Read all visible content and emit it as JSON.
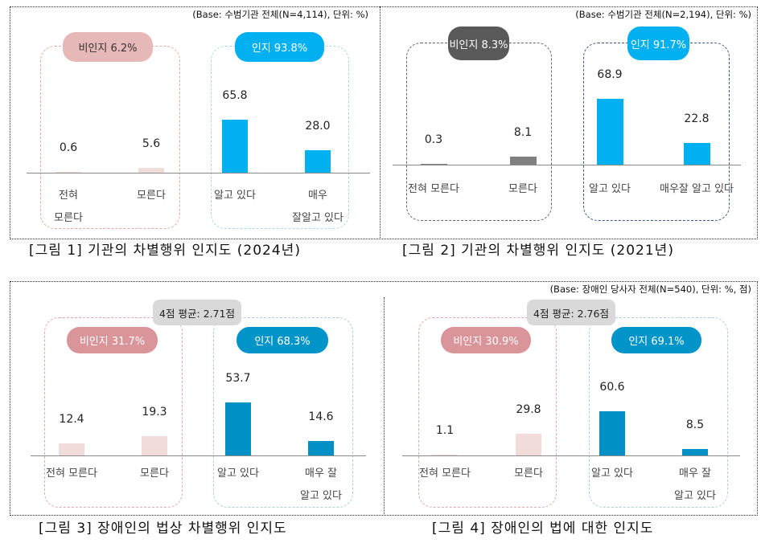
{
  "top_base_left": "(Base: 수범기관 전체(N=4,114), 단위: %)",
  "top_base_right": "(Base: 수범기관 전체(N=2,194), 단위: %)",
  "bottom_base": "(Base: 장애인 당사자 전체(N=540), 단위: %, 점)",
  "chart_data": [
    {
      "type": "bar",
      "title": "[그림 1] 기관의 차별행위 인지도 (2024년)",
      "categories": [
        "전혀\n모른다",
        "모른다",
        "알고 있다",
        "매우\n잘알고 있다"
      ],
      "values": [
        0.6,
        5.6,
        65.8,
        28.0
      ],
      "value_labels": [
        "0.6",
        "5.6",
        "65.8",
        "28.0"
      ],
      "groups": [
        {
          "label": "비인지 6.2%",
          "color": "#e6b9b8"
        },
        {
          "label": "인지 93.8%",
          "color": "#00b0f0"
        }
      ],
      "bar_colors": [
        "#f2dcdb",
        "#f2dcdb",
        "#00b0f0",
        "#00b0f0"
      ]
    },
    {
      "type": "bar",
      "title": "[그림 2] 기관의 차별행위 인지도 (2021년)",
      "categories": [
        "전혀 모른다",
        "모른다",
        "알고 있다",
        "매우잘 알고 있다"
      ],
      "values": [
        0.3,
        8.1,
        68.9,
        22.8
      ],
      "value_labels": [
        "0.3",
        "8.1",
        "68.9",
        "22.8"
      ],
      "groups": [
        {
          "label": "비인지 8.3%",
          "color": "#595959"
        },
        {
          "label": "인지 91.7%",
          "color": "#00b0f0"
        }
      ],
      "bar_colors": [
        "#808080",
        "#808080",
        "#00b0f0",
        "#00b0f0"
      ]
    },
    {
      "type": "bar",
      "title": "[그림 3] 장애인의 법상 차별행위 인지도",
      "average": "4점 평균: 2.71점",
      "categories": [
        "전혀 모른다",
        "모른다",
        "알고 있다",
        "매우 잘\n알고 있다"
      ],
      "values": [
        12.4,
        19.3,
        53.7,
        14.6
      ],
      "value_labels": [
        "12.4",
        "19.3",
        "53.7",
        "14.6"
      ],
      "groups": [
        {
          "label": "비인지 31.7%",
          "color": "#d9959a"
        },
        {
          "label": "인지 68.3%",
          "color": "#0094c8"
        }
      ],
      "bar_colors": [
        "#f2dcdb",
        "#f2dcdb",
        "#0090c6",
        "#0090c6"
      ]
    },
    {
      "type": "bar",
      "title": "[그림 4] 장애인의 법에 대한 인지도",
      "average": "4점 평균: 2.76점",
      "categories": [
        "전혀 모른다",
        "모른다",
        "알고 있다",
        "매우 잘\n알고 있다"
      ],
      "values": [
        1.1,
        29.8,
        60.6,
        8.5
      ],
      "value_labels": [
        "1.1",
        "29.8",
        "60.6",
        "8.5"
      ],
      "groups": [
        {
          "label": "비인지 30.9%",
          "color": "#d9959a"
        },
        {
          "label": "인지 69.1%",
          "color": "#0094c8"
        }
      ],
      "bar_colors": [
        "#f2dcdb",
        "#f2dcdb",
        "#0090c6",
        "#0090c6"
      ]
    }
  ]
}
